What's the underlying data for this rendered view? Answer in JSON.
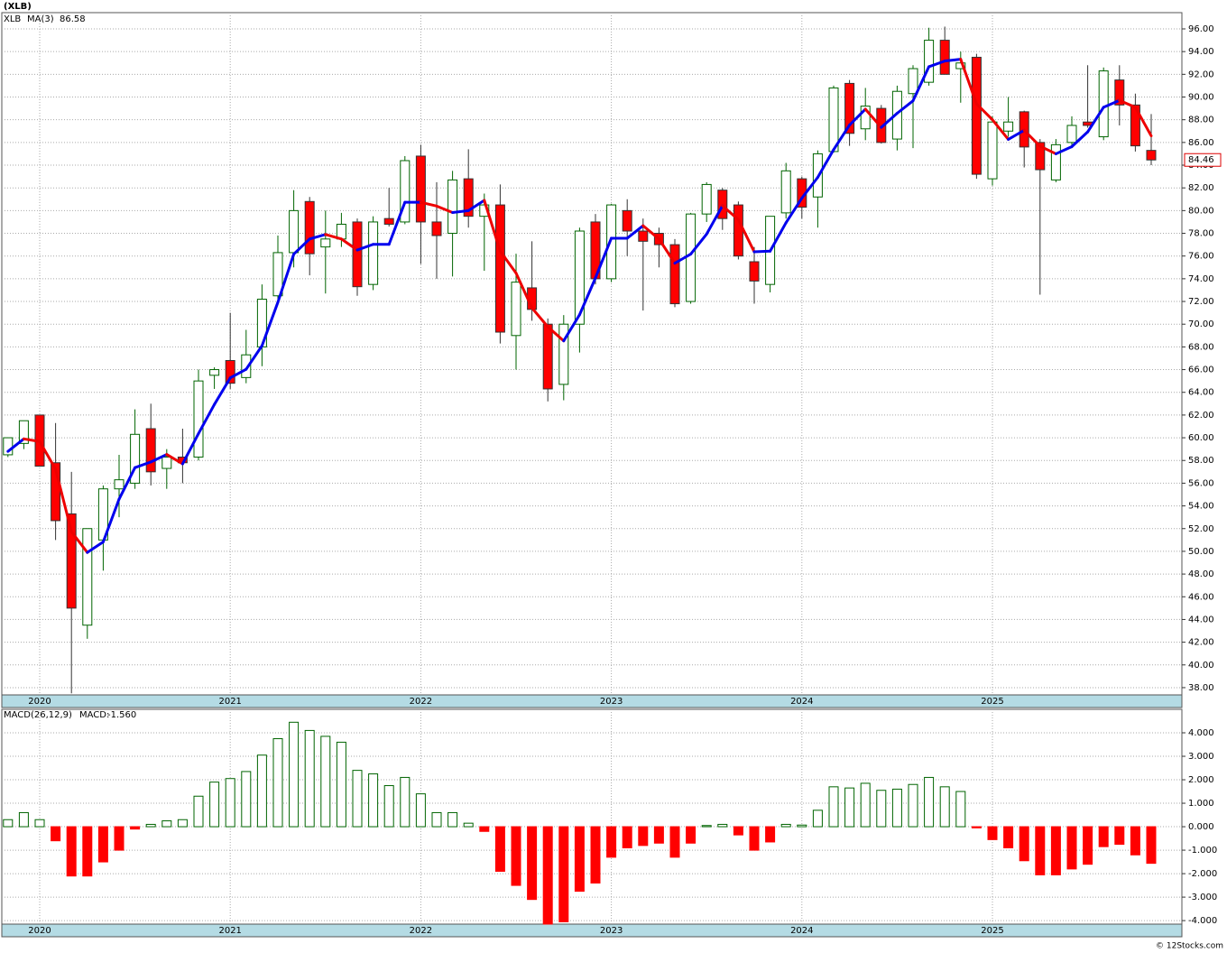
{
  "chart_data": [
    {
      "type": "candlestick",
      "title": "(XLB)",
      "symbol": "XLB",
      "up_color": "#006400",
      "down_color": "#ff0000",
      "grid": true,
      "categories": [
        null,
        null,
        "2020",
        null,
        null,
        null,
        null,
        null,
        null,
        null,
        null,
        null,
        null,
        null,
        "2021",
        null,
        null,
        null,
        null,
        null,
        null,
        null,
        null,
        null,
        null,
        null,
        "2022",
        null,
        null,
        null,
        null,
        null,
        null,
        null,
        null,
        null,
        null,
        null,
        "2023",
        null,
        null,
        null,
        null,
        null,
        null,
        null,
        null,
        null,
        null,
        null,
        "2024",
        null,
        null,
        null,
        null,
        null,
        null,
        null,
        null,
        null,
        null,
        null,
        "2025",
        null,
        null,
        null,
        null,
        null,
        null,
        null,
        null,
        null,
        null
      ],
      "open": [
        58.5,
        59.5,
        62,
        57.8,
        53.3,
        43.5,
        51,
        55.5,
        56,
        60.8,
        57.3,
        58.3,
        58.3,
        65.5,
        66.8,
        65.3,
        68,
        72.5,
        76.3,
        80.8,
        76.8,
        77.5,
        79,
        73.5,
        79.3,
        79,
        84.8,
        79,
        78,
        82.8,
        79.5,
        80.5,
        69,
        73.2,
        70,
        64.7,
        70,
        79,
        74,
        80,
        78.2,
        78,
        77,
        72,
        79.7,
        81.8,
        80.5,
        75.5,
        73.5,
        79.8,
        82.8,
        81.2,
        85.2,
        91.2,
        87.2,
        89,
        86.3,
        90.3,
        91.3,
        95,
        92.5,
        93.5,
        82.8,
        87,
        88.7,
        86,
        82.7,
        86,
        87.8,
        86.5,
        91.5,
        89.3,
        85.3
      ],
      "high": [
        60,
        61.5,
        62,
        61.3,
        57,
        52,
        55.8,
        58.5,
        62.5,
        63,
        59,
        60.8,
        66,
        66.2,
        71,
        69.5,
        73.5,
        77.8,
        81.8,
        81.2,
        80,
        79.8,
        79.3,
        79.5,
        82,
        84.8,
        85.8,
        82.5,
        83.5,
        85.4,
        81.5,
        82.3,
        76.2,
        77.3,
        70.5,
        70.8,
        78.5,
        79.7,
        80.6,
        81,
        79.3,
        78.5,
        77.5,
        79.8,
        82.5,
        82,
        80.8,
        76.8,
        79.5,
        84.2,
        83,
        85.3,
        91,
        91.5,
        90.8,
        89.3,
        91,
        92.8,
        96.1,
        96.2,
        94,
        93.8,
        88.3,
        90,
        88.8,
        86.3,
        86.3,
        88.3,
        92.8,
        92.6,
        92.8,
        90.3,
        88.5
      ],
      "low": [
        58.3,
        59,
        57.5,
        51,
        37.5,
        42.3,
        48.3,
        53,
        55.5,
        55.8,
        55.5,
        56,
        58,
        64.3,
        64.3,
        64.8,
        66.3,
        72,
        75,
        74.3,
        72.7,
        76.8,
        72.5,
        73,
        78.6,
        78.8,
        75.3,
        74,
        74.2,
        78.5,
        74.7,
        68.3,
        66,
        70.3,
        63.2,
        63.3,
        67.5,
        73.5,
        73.7,
        76,
        71.2,
        75,
        71.5,
        71.8,
        79,
        78.3,
        75.7,
        71.8,
        72.8,
        79.3,
        79.3,
        78.5,
        85.1,
        85.7,
        86.2,
        85.9,
        85.3,
        85.5,
        91,
        92,
        89.5,
        82.8,
        82.2,
        86.5,
        83.8,
        72.6,
        82.5,
        85.5,
        87.3,
        86.2,
        87.5,
        85.2,
        84
      ],
      "close": [
        60,
        61.5,
        57.5,
        52.7,
        45,
        52,
        55.5,
        56.3,
        60.3,
        57,
        58.3,
        57.8,
        65,
        66,
        64.8,
        67.3,
        72.2,
        76.3,
        80,
        76.2,
        77.5,
        78.8,
        73.3,
        79,
        78.8,
        84.4,
        79,
        77.8,
        82.7,
        79.5,
        80.5,
        69.3,
        73.7,
        71.3,
        64.3,
        70,
        78.2,
        74,
        80.5,
        78.2,
        77.3,
        77,
        71.8,
        79.7,
        82.3,
        79.3,
        76,
        73.8,
        79.5,
        83.5,
        80.3,
        85,
        90.8,
        86.8,
        89.2,
        86,
        90.5,
        92.5,
        95,
        92,
        93,
        83.2,
        87.8,
        87.8,
        85.6,
        83.6,
        85.8,
        87.5,
        87.5,
        92.3,
        89.3,
        85.7,
        84.46
      ],
      "ma": {
        "name": "MA(3)",
        "rising_color": "#0000ee",
        "falling_color": "#ee0000",
        "values": [
          58.8,
          59.9,
          59.67,
          57.23,
          51.73,
          49.9,
          50.83,
          54.6,
          57.37,
          57.87,
          58.53,
          57.7,
          60.37,
          62.93,
          65.27,
          66.03,
          68.1,
          71.93,
          76.17,
          77.5,
          77.9,
          77.5,
          76.53,
          77.03,
          77.03,
          80.73,
          80.73,
          80.4,
          79.83,
          80,
          80.9,
          76.43,
          74.5,
          71.43,
          69.77,
          68.53,
          70.83,
          74.07,
          77.57,
          77.57,
          78.67,
          77.5,
          75.37,
          76.17,
          77.93,
          80.43,
          79.2,
          76.37,
          76.43,
          78.93,
          81.1,
          82.93,
          85.37,
          87.53,
          88.93,
          87.33,
          88.57,
          89.67,
          92.67,
          93.17,
          93.33,
          89.4,
          88,
          86.27,
          87.07,
          85.67,
          85,
          85.63,
          86.93,
          89.1,
          89.7,
          89.1,
          86.58
        ]
      },
      "ylim": [
        37.36,
        97.43
      ],
      "yticks": [
        {
          "value": 38,
          "label": "38.00"
        },
        {
          "value": 40,
          "label": "40.00"
        },
        {
          "value": 42,
          "label": "42.00"
        },
        {
          "value": 44,
          "label": "44.00"
        },
        {
          "value": 46,
          "label": "46.00"
        },
        {
          "value": 48,
          "label": "48.00"
        },
        {
          "value": 50,
          "label": "50.00"
        },
        {
          "value": 52,
          "label": "52.00"
        },
        {
          "value": 54,
          "label": "54.00"
        },
        {
          "value": 56,
          "label": "56.00"
        },
        {
          "value": 58,
          "label": "58.00"
        },
        {
          "value": 60,
          "label": "60.00"
        },
        {
          "value": 62,
          "label": "62.00"
        },
        {
          "value": 64,
          "label": "64.00"
        },
        {
          "value": 66,
          "label": "66.00"
        },
        {
          "value": 68,
          "label": "68.00"
        },
        {
          "value": 70,
          "label": "70.00"
        },
        {
          "value": 72,
          "label": "72.00"
        },
        {
          "value": 74,
          "label": "74.00"
        },
        {
          "value": 76,
          "label": "76.00"
        },
        {
          "value": 78,
          "label": "78.00"
        },
        {
          "value": 80,
          "label": "80.00"
        },
        {
          "value": 82,
          "label": "82.00"
        },
        {
          "value": 84,
          "label": "84.00"
        },
        {
          "value": 86,
          "label": "86.00"
        },
        {
          "value": 88,
          "label": "88.00"
        },
        {
          "value": 90,
          "label": "90.00"
        },
        {
          "value": 92,
          "label": "92.00"
        },
        {
          "value": 94,
          "label": "94.00"
        },
        {
          "value": 96,
          "label": "96.00"
        }
      ]
    },
    {
      "type": "bar",
      "name": "MACD(26,12,9)",
      "legend_label": "MACD:",
      "last_value_label": "-1.560",
      "positive_color": "#006400",
      "negative_color": "#ff0000",
      "grid": true,
      "categories": [
        null,
        null,
        "2020",
        null,
        null,
        null,
        null,
        null,
        null,
        null,
        null,
        null,
        null,
        null,
        "2021",
        null,
        null,
        null,
        null,
        null,
        null,
        null,
        null,
        null,
        null,
        null,
        "2022",
        null,
        null,
        null,
        null,
        null,
        null,
        null,
        null,
        null,
        null,
        null,
        "2023",
        null,
        null,
        null,
        null,
        null,
        null,
        null,
        null,
        null,
        null,
        null,
        "2024",
        null,
        null,
        null,
        null,
        null,
        null,
        null,
        null,
        null,
        null,
        null,
        "2025",
        null,
        null,
        null,
        null,
        null,
        null,
        null,
        null,
        null,
        null
      ],
      "values": [
        0.3,
        0.6,
        0.3,
        -0.6,
        -2.1,
        -2.1,
        -1.5,
        -1.0,
        -0.1,
        0.1,
        0.25,
        0.3,
        1.3,
        1.9,
        2.05,
        2.35,
        3.05,
        3.75,
        4.45,
        4.1,
        3.85,
        3.6,
        2.4,
        2.25,
        1.75,
        2.1,
        1.4,
        0.6,
        0.6,
        0.15,
        -0.2,
        -1.9,
        -2.5,
        -3.1,
        -4.15,
        -4.05,
        -2.75,
        -2.4,
        -1.3,
        -0.9,
        -0.8,
        -0.7,
        -1.3,
        -0.7,
        0.05,
        0.1,
        -0.35,
        -1.0,
        -0.65,
        0.1,
        0.07,
        0.7,
        1.7,
        1.65,
        1.85,
        1.55,
        1.6,
        1.8,
        2.1,
        1.7,
        1.5,
        -0.05,
        -0.55,
        -0.9,
        -1.45,
        -2.05,
        -2.05,
        -1.8,
        -1.6,
        -0.85,
        -0.75,
        -1.2,
        -1.56
      ],
      "ylim": [
        -4.15,
        5.0
      ],
      "yticks": [
        {
          "value": -4,
          "label": "-4.000"
        },
        {
          "value": -3,
          "label": "-3.000"
        },
        {
          "value": -2,
          "label": "-2.000"
        },
        {
          "value": -1,
          "label": "-1.000"
        },
        {
          "value": 0,
          "label": "0.000"
        },
        {
          "value": 1,
          "label": "1.000"
        },
        {
          "value": 2,
          "label": "2.000"
        },
        {
          "value": 3,
          "label": "3.000"
        },
        {
          "value": 4,
          "label": "4.000"
        }
      ]
    }
  ],
  "credit": "© 12Stocks.com"
}
